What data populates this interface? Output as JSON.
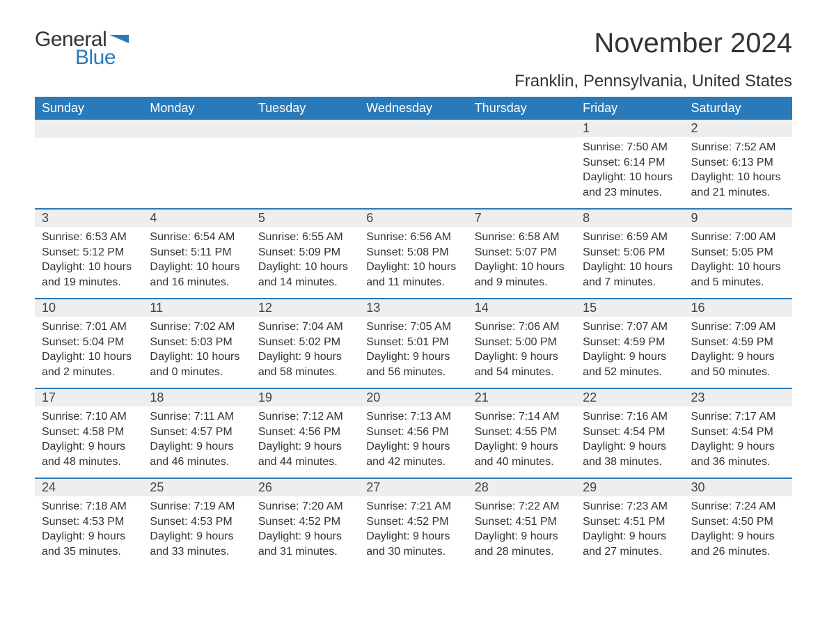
{
  "logo": {
    "text_general": "General",
    "text_blue": "Blue",
    "flag_color": "#2a7ab9"
  },
  "title": "November 2024",
  "location": "Franklin, Pennsylvania, United States",
  "theme": {
    "header_bg": "#2a7ab9",
    "header_fg": "#ffffff",
    "daynum_bg": "#eeeeee",
    "body_fg": "#333333",
    "title_fontsize": 40,
    "location_fontsize": 24,
    "th_fontsize": 18,
    "daynum_fontsize": 18,
    "body_fontsize": 16
  },
  "weekdays": [
    "Sunday",
    "Monday",
    "Tuesday",
    "Wednesday",
    "Thursday",
    "Friday",
    "Saturday"
  ],
  "weeks": [
    [
      null,
      null,
      null,
      null,
      null,
      {
        "n": "1",
        "sr": "Sunrise: 7:50 AM",
        "ss": "Sunset: 6:14 PM",
        "d1": "Daylight: 10 hours",
        "d2": "and 23 minutes."
      },
      {
        "n": "2",
        "sr": "Sunrise: 7:52 AM",
        "ss": "Sunset: 6:13 PM",
        "d1": "Daylight: 10 hours",
        "d2": "and 21 minutes."
      }
    ],
    [
      {
        "n": "3",
        "sr": "Sunrise: 6:53 AM",
        "ss": "Sunset: 5:12 PM",
        "d1": "Daylight: 10 hours",
        "d2": "and 19 minutes."
      },
      {
        "n": "4",
        "sr": "Sunrise: 6:54 AM",
        "ss": "Sunset: 5:11 PM",
        "d1": "Daylight: 10 hours",
        "d2": "and 16 minutes."
      },
      {
        "n": "5",
        "sr": "Sunrise: 6:55 AM",
        "ss": "Sunset: 5:09 PM",
        "d1": "Daylight: 10 hours",
        "d2": "and 14 minutes."
      },
      {
        "n": "6",
        "sr": "Sunrise: 6:56 AM",
        "ss": "Sunset: 5:08 PM",
        "d1": "Daylight: 10 hours",
        "d2": "and 11 minutes."
      },
      {
        "n": "7",
        "sr": "Sunrise: 6:58 AM",
        "ss": "Sunset: 5:07 PM",
        "d1": "Daylight: 10 hours",
        "d2": "and 9 minutes."
      },
      {
        "n": "8",
        "sr": "Sunrise: 6:59 AM",
        "ss": "Sunset: 5:06 PM",
        "d1": "Daylight: 10 hours",
        "d2": "and 7 minutes."
      },
      {
        "n": "9",
        "sr": "Sunrise: 7:00 AM",
        "ss": "Sunset: 5:05 PM",
        "d1": "Daylight: 10 hours",
        "d2": "and 5 minutes."
      }
    ],
    [
      {
        "n": "10",
        "sr": "Sunrise: 7:01 AM",
        "ss": "Sunset: 5:04 PM",
        "d1": "Daylight: 10 hours",
        "d2": "and 2 minutes."
      },
      {
        "n": "11",
        "sr": "Sunrise: 7:02 AM",
        "ss": "Sunset: 5:03 PM",
        "d1": "Daylight: 10 hours",
        "d2": "and 0 minutes."
      },
      {
        "n": "12",
        "sr": "Sunrise: 7:04 AM",
        "ss": "Sunset: 5:02 PM",
        "d1": "Daylight: 9 hours",
        "d2": "and 58 minutes."
      },
      {
        "n": "13",
        "sr": "Sunrise: 7:05 AM",
        "ss": "Sunset: 5:01 PM",
        "d1": "Daylight: 9 hours",
        "d2": "and 56 minutes."
      },
      {
        "n": "14",
        "sr": "Sunrise: 7:06 AM",
        "ss": "Sunset: 5:00 PM",
        "d1": "Daylight: 9 hours",
        "d2": "and 54 minutes."
      },
      {
        "n": "15",
        "sr": "Sunrise: 7:07 AM",
        "ss": "Sunset: 4:59 PM",
        "d1": "Daylight: 9 hours",
        "d2": "and 52 minutes."
      },
      {
        "n": "16",
        "sr": "Sunrise: 7:09 AM",
        "ss": "Sunset: 4:59 PM",
        "d1": "Daylight: 9 hours",
        "d2": "and 50 minutes."
      }
    ],
    [
      {
        "n": "17",
        "sr": "Sunrise: 7:10 AM",
        "ss": "Sunset: 4:58 PM",
        "d1": "Daylight: 9 hours",
        "d2": "and 48 minutes."
      },
      {
        "n": "18",
        "sr": "Sunrise: 7:11 AM",
        "ss": "Sunset: 4:57 PM",
        "d1": "Daylight: 9 hours",
        "d2": "and 46 minutes."
      },
      {
        "n": "19",
        "sr": "Sunrise: 7:12 AM",
        "ss": "Sunset: 4:56 PM",
        "d1": "Daylight: 9 hours",
        "d2": "and 44 minutes."
      },
      {
        "n": "20",
        "sr": "Sunrise: 7:13 AM",
        "ss": "Sunset: 4:56 PM",
        "d1": "Daylight: 9 hours",
        "d2": "and 42 minutes."
      },
      {
        "n": "21",
        "sr": "Sunrise: 7:14 AM",
        "ss": "Sunset: 4:55 PM",
        "d1": "Daylight: 9 hours",
        "d2": "and 40 minutes."
      },
      {
        "n": "22",
        "sr": "Sunrise: 7:16 AM",
        "ss": "Sunset: 4:54 PM",
        "d1": "Daylight: 9 hours",
        "d2": "and 38 minutes."
      },
      {
        "n": "23",
        "sr": "Sunrise: 7:17 AM",
        "ss": "Sunset: 4:54 PM",
        "d1": "Daylight: 9 hours",
        "d2": "and 36 minutes."
      }
    ],
    [
      {
        "n": "24",
        "sr": "Sunrise: 7:18 AM",
        "ss": "Sunset: 4:53 PM",
        "d1": "Daylight: 9 hours",
        "d2": "and 35 minutes."
      },
      {
        "n": "25",
        "sr": "Sunrise: 7:19 AM",
        "ss": "Sunset: 4:53 PM",
        "d1": "Daylight: 9 hours",
        "d2": "and 33 minutes."
      },
      {
        "n": "26",
        "sr": "Sunrise: 7:20 AM",
        "ss": "Sunset: 4:52 PM",
        "d1": "Daylight: 9 hours",
        "d2": "and 31 minutes."
      },
      {
        "n": "27",
        "sr": "Sunrise: 7:21 AM",
        "ss": "Sunset: 4:52 PM",
        "d1": "Daylight: 9 hours",
        "d2": "and 30 minutes."
      },
      {
        "n": "28",
        "sr": "Sunrise: 7:22 AM",
        "ss": "Sunset: 4:51 PM",
        "d1": "Daylight: 9 hours",
        "d2": "and 28 minutes."
      },
      {
        "n": "29",
        "sr": "Sunrise: 7:23 AM",
        "ss": "Sunset: 4:51 PM",
        "d1": "Daylight: 9 hours",
        "d2": "and 27 minutes."
      },
      {
        "n": "30",
        "sr": "Sunrise: 7:24 AM",
        "ss": "Sunset: 4:50 PM",
        "d1": "Daylight: 9 hours",
        "d2": "and 26 minutes."
      }
    ]
  ]
}
